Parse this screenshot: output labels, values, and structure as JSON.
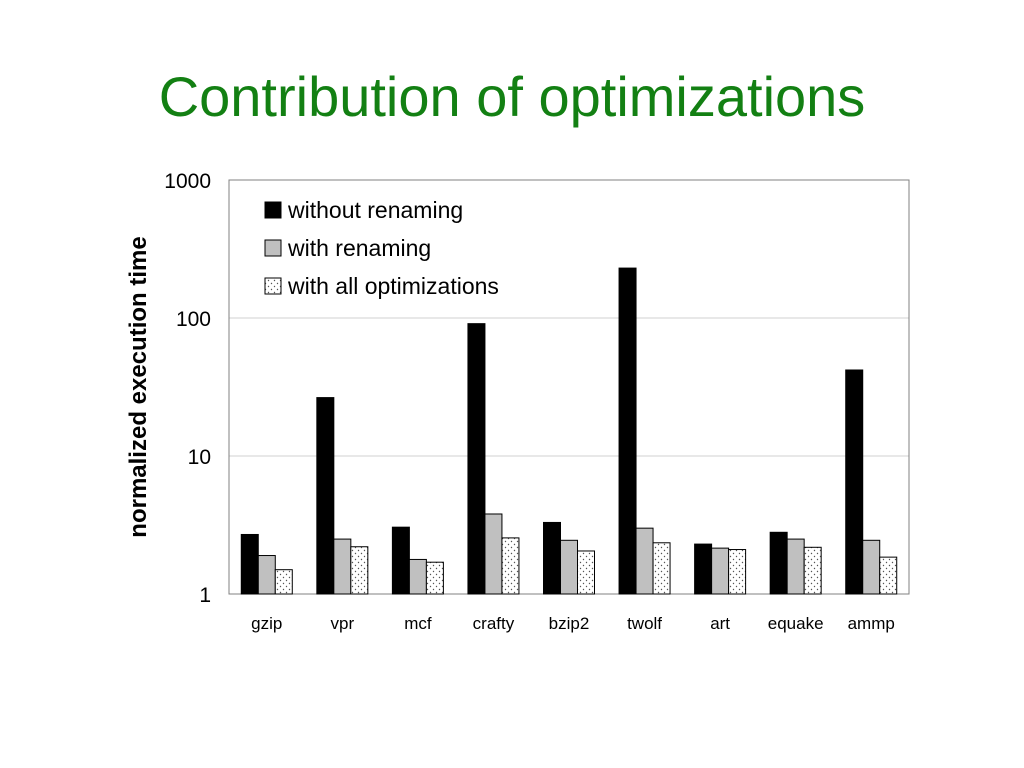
{
  "slide": {
    "title": "Contribution of optimizations"
  },
  "chart_data": {
    "type": "bar",
    "scale": "log",
    "ylabel": "normalized execution time",
    "xlabel": "",
    "ylim": [
      1,
      1000
    ],
    "yticks": [
      "1",
      "10",
      "100",
      "1000"
    ],
    "ytick_values": [
      1,
      10,
      100,
      1000
    ],
    "grid": true,
    "legend_position": "top-left",
    "categories": [
      "gzip",
      "vpr",
      "mcf",
      "crafty",
      "bzip2",
      "twolf",
      "art",
      "equake",
      "ammp"
    ],
    "series": [
      {
        "name": "without renaming",
        "color": "#000000",
        "pattern": "solid",
        "values": [
          2.7,
          26.5,
          3.05,
          91,
          3.3,
          230,
          2.3,
          2.8,
          42
        ]
      },
      {
        "name": "with renaming",
        "color": "#c0c0c0",
        "pattern": "solid",
        "values": [
          1.9,
          2.5,
          1.78,
          3.8,
          2.45,
          3.0,
          2.15,
          2.5,
          2.45
        ]
      },
      {
        "name": "with all optimizations",
        "color": "#ffffff",
        "pattern": "dots",
        "values": [
          1.5,
          2.2,
          1.7,
          2.55,
          2.05,
          2.35,
          2.1,
          2.18,
          1.85
        ]
      }
    ]
  }
}
